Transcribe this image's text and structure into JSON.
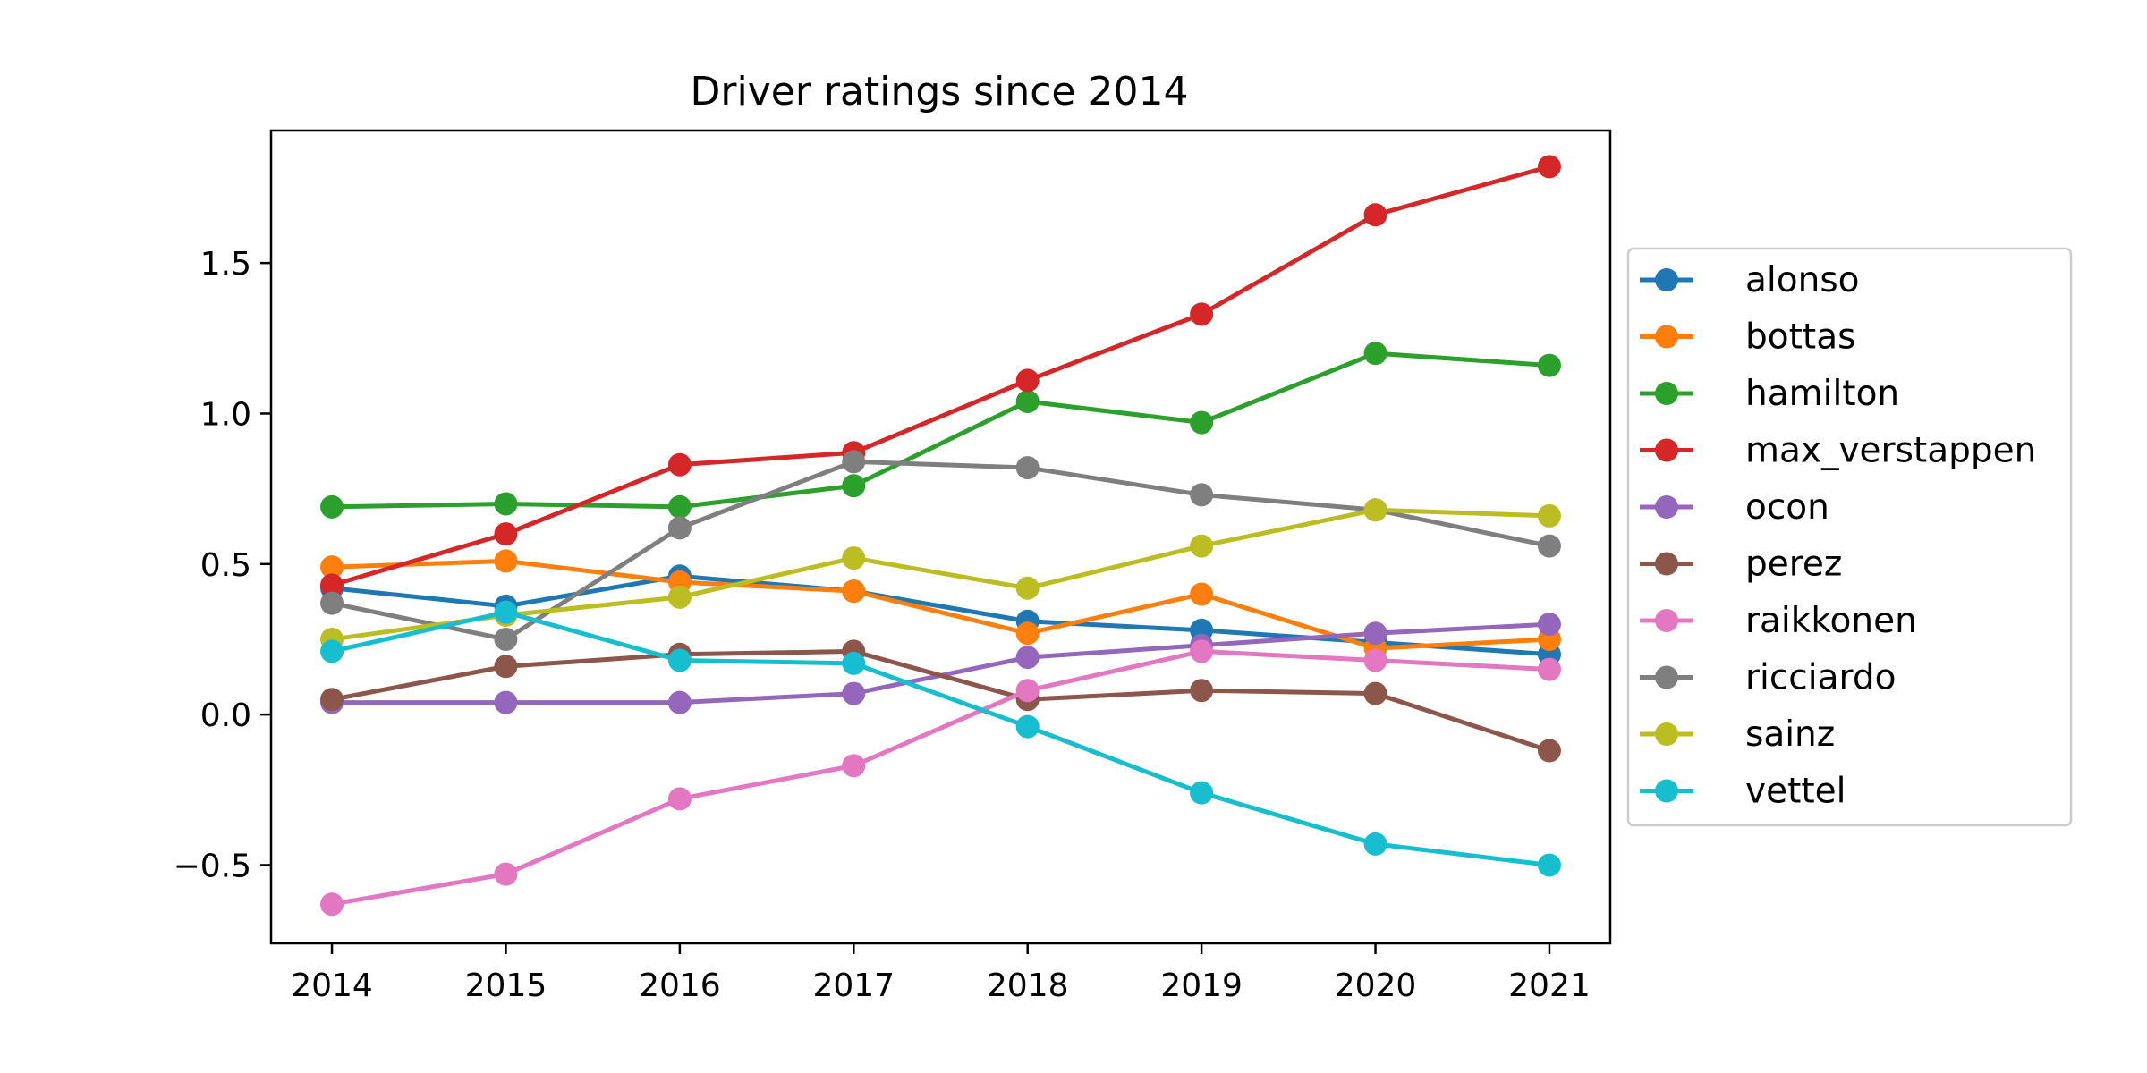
{
  "chart_data": {
    "type": "line",
    "title": "Driver ratings since 2014",
    "xlabel": "",
    "ylabel": "",
    "x": [
      2014,
      2015,
      2016,
      2017,
      2018,
      2019,
      2020,
      2021
    ],
    "xlim": [
      2013.65,
      2021.35
    ],
    "ylim": [
      -0.76,
      1.94
    ],
    "yticks": [
      -0.5,
      0.0,
      0.5,
      1.0,
      1.5
    ],
    "ytick_labels": [
      "−0.5",
      "0.0",
      "0.5",
      "1.0",
      "1.5"
    ],
    "xtick_labels": [
      "2014",
      "2015",
      "2016",
      "2017",
      "2018",
      "2019",
      "2020",
      "2021"
    ],
    "grid": false,
    "legend_position": "outside-right",
    "series": [
      {
        "name": "alonso",
        "color": "#1f77b4",
        "values": [
          0.42,
          0.36,
          0.46,
          0.41,
          0.31,
          0.28,
          0.24,
          0.2
        ]
      },
      {
        "name": "bottas",
        "color": "#ff7f0e",
        "values": [
          0.49,
          0.51,
          0.44,
          0.41,
          0.27,
          0.4,
          0.22,
          0.25
        ]
      },
      {
        "name": "hamilton",
        "color": "#2ca02c",
        "values": [
          0.69,
          0.7,
          0.69,
          0.76,
          1.04,
          0.97,
          1.2,
          1.16
        ]
      },
      {
        "name": "max_verstappen",
        "color": "#d62728",
        "values": [
          0.43,
          0.6,
          0.83,
          0.87,
          1.11,
          1.33,
          1.66,
          1.82
        ]
      },
      {
        "name": "ocon",
        "color": "#9467bd",
        "values": [
          0.04,
          0.04,
          0.04,
          0.07,
          0.19,
          0.23,
          0.27,
          0.3
        ]
      },
      {
        "name": "perez",
        "color": "#8c564b",
        "values": [
          0.05,
          0.16,
          0.2,
          0.21,
          0.05,
          0.08,
          0.07,
          -0.12
        ]
      },
      {
        "name": "raikkonen",
        "color": "#e377c2",
        "values": [
          -0.63,
          -0.53,
          -0.28,
          -0.17,
          0.08,
          0.21,
          0.18,
          0.15
        ]
      },
      {
        "name": "ricciardo",
        "color": "#7f7f7f",
        "values": [
          0.37,
          0.25,
          0.62,
          0.84,
          0.82,
          0.73,
          0.68,
          0.56
        ]
      },
      {
        "name": "sainz",
        "color": "#bcbd22",
        "values": [
          0.25,
          0.33,
          0.39,
          0.52,
          0.42,
          0.56,
          0.68,
          0.66
        ]
      },
      {
        "name": "vettel",
        "color": "#17becf",
        "values": [
          0.21,
          0.34,
          0.18,
          0.17,
          -0.04,
          -0.26,
          -0.43,
          -0.5
        ]
      }
    ]
  }
}
